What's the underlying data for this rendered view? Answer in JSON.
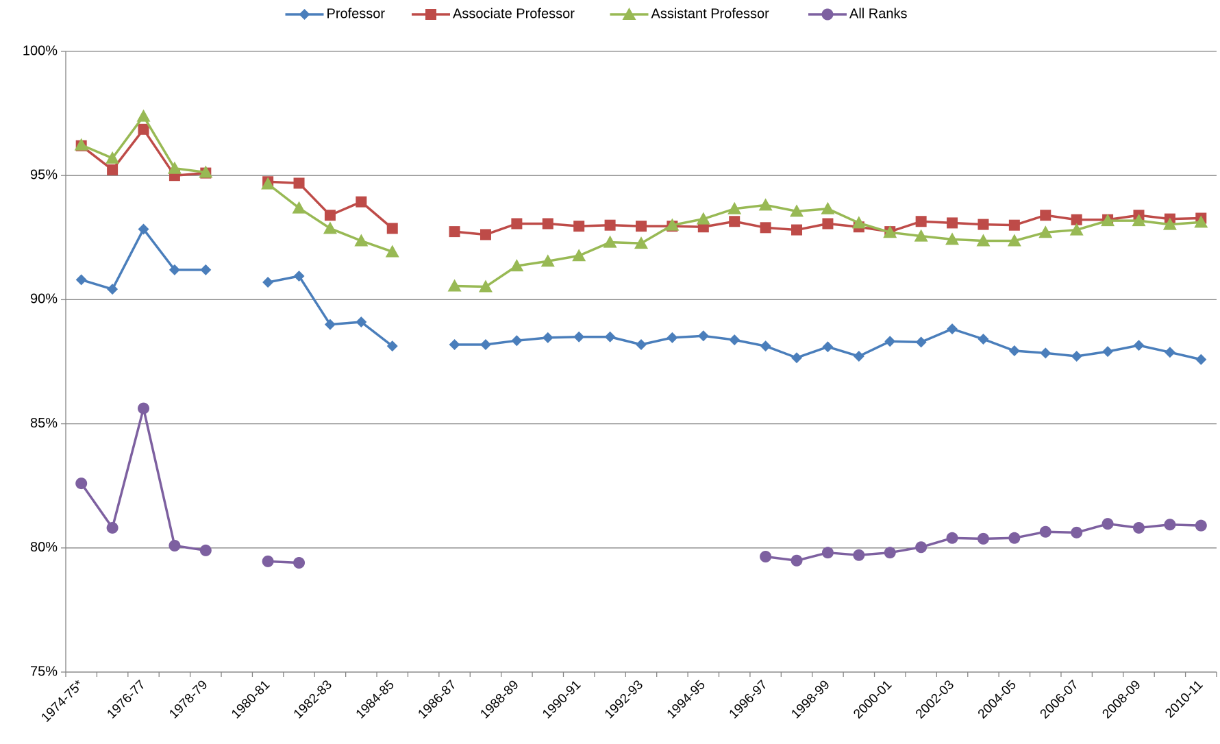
{
  "chart_data": {
    "type": "line",
    "categories": [
      "1974-75*",
      null,
      "1976-77",
      null,
      "1978-79",
      null,
      "1980-81",
      null,
      "1982-83",
      null,
      "1984-85",
      null,
      "1986-87",
      null,
      "1988-89",
      null,
      "1990-91",
      null,
      "1992-93",
      null,
      "1994-95",
      null,
      "1996-97",
      null,
      "1998-99",
      null,
      "2000-01",
      null,
      "2002-03",
      null,
      "2004-05",
      null,
      "2006-07",
      null,
      "2008-09",
      null,
      "2010-11"
    ],
    "series": [
      {
        "name": "Professor",
        "color": "#4a7ebb",
        "marker": "diamond",
        "values": [
          90.8,
          90.42,
          92.84,
          91.2,
          91.2,
          null,
          90.7,
          90.95,
          89.0,
          89.1,
          88.13,
          null,
          88.19,
          88.19,
          88.35,
          88.47,
          88.5,
          88.5,
          88.19,
          88.47,
          88.54,
          88.38,
          88.13,
          87.66,
          88.1,
          87.72,
          88.32,
          88.29,
          88.82,
          88.41,
          87.94,
          87.85,
          87.72,
          87.91,
          88.16,
          87.88,
          87.59
        ]
      },
      {
        "name": "Associate Professor",
        "color": "#be4b48",
        "marker": "square",
        "values": [
          96.2,
          95.23,
          96.86,
          95.0,
          95.1,
          null,
          94.75,
          94.69,
          93.4,
          93.94,
          92.87,
          null,
          92.74,
          92.62,
          93.06,
          93.06,
          92.96,
          93.0,
          92.96,
          92.96,
          92.93,
          93.15,
          92.9,
          92.81,
          93.06,
          92.93,
          92.74,
          93.15,
          93.09,
          93.03,
          93.0,
          93.4,
          93.22,
          93.22,
          93.4,
          93.25,
          93.28
        ]
      },
      {
        "name": "Assistant Professor",
        "color": "#98b954",
        "marker": "triangle",
        "values": [
          96.23,
          95.7,
          97.39,
          95.29,
          95.13,
          null,
          94.66,
          93.69,
          92.87,
          92.37,
          91.93,
          null,
          90.55,
          90.52,
          91.36,
          91.55,
          91.77,
          92.31,
          92.27,
          93.0,
          93.25,
          93.66,
          93.81,
          93.56,
          93.66,
          93.09,
          92.71,
          92.56,
          92.43,
          92.37,
          92.37,
          92.71,
          92.81,
          93.18,
          93.18,
          93.03,
          93.12
        ]
      },
      {
        "name": "All Ranks",
        "color": "#7d60a0",
        "marker": "circle",
        "values": [
          82.6,
          80.81,
          85.62,
          80.09,
          79.9,
          null,
          79.46,
          79.4,
          null,
          null,
          null,
          null,
          null,
          null,
          null,
          null,
          null,
          null,
          null,
          null,
          null,
          null,
          79.65,
          79.49,
          79.81,
          79.71,
          79.81,
          80.03,
          80.4,
          80.37,
          80.4,
          80.65,
          80.62,
          80.97,
          80.81,
          80.94,
          80.9
        ]
      }
    ],
    "ylim": [
      75,
      100
    ],
    "yticks": [
      {
        "value": 75,
        "label": "75%"
      },
      {
        "value": 80,
        "label": "80%"
      },
      {
        "value": 85,
        "label": "85%"
      },
      {
        "value": 90,
        "label": "90%"
      },
      {
        "value": 95,
        "label": "95%"
      },
      {
        "value": 100,
        "label": "100%"
      }
    ],
    "grid": true,
    "legend": "top"
  }
}
